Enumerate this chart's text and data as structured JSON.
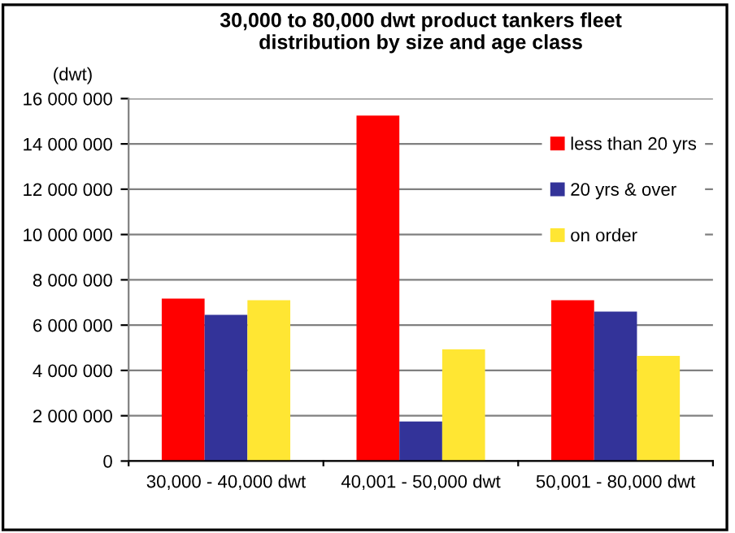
{
  "chart_data": {
    "type": "bar",
    "title": "30,000 to 80,000 dwt product tankers fleet\ndistribution by size and age class",
    "ylabel": "(dwt)",
    "categories": [
      "30,000 - 40,000 dwt",
      "40,001 - 50,000 dwt",
      "50,001 - 80,000 dwt"
    ],
    "series": [
      {
        "name": "less than 20 yrs",
        "color": "#ff0000",
        "values": [
          7170000,
          15250000,
          7100000
        ]
      },
      {
        "name": "20 yrs & over",
        "color": "#333399",
        "values": [
          6450000,
          1750000,
          6600000
        ]
      },
      {
        "name": "on order",
        "color": "#ffe633",
        "values": [
          7100000,
          4930000,
          4640000
        ]
      }
    ],
    "ylim": [
      0,
      16000000
    ],
    "yticks": [
      {
        "value": 0,
        "label": "0"
      },
      {
        "value": 2000000,
        "label": "2 000 000"
      },
      {
        "value": 4000000,
        "label": "4 000 000"
      },
      {
        "value": 6000000,
        "label": "6 000 000"
      },
      {
        "value": 8000000,
        "label": "8 000 000"
      },
      {
        "value": 10000000,
        "label": "10 000 000"
      },
      {
        "value": 12000000,
        "label": "12 000 000"
      },
      {
        "value": 14000000,
        "label": "14 000 000"
      },
      {
        "value": 16000000,
        "label": "16 000 000"
      }
    ],
    "grid": "y",
    "legend": "top right"
  }
}
